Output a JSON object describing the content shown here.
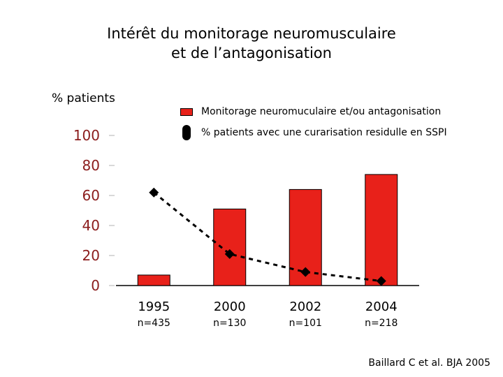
{
  "chart_data": {
    "type": "bar",
    "title": [
      "Intérêt du monitorage neuromusculaire",
      "et de l’antagonisation"
    ],
    "ylabel": "% patients",
    "ylim": [
      0,
      100
    ],
    "yticks": [
      "0",
      "20",
      "40",
      "60",
      "80",
      "100"
    ],
    "categories": [
      "1995",
      "2000",
      "2002",
      "2004"
    ],
    "sample_sizes": [
      "n=435",
      "n=130",
      "n=101",
      "n=218"
    ],
    "series": [
      {
        "name": "Monitorage neuromuculaire et/ou antagonisation",
        "kind": "bar",
        "color": "#e8211a",
        "values": [
          7,
          51,
          64,
          74
        ]
      },
      {
        "name": "% patients avec une curarisation residulle en SSPI",
        "kind": "dashed-line-diamond",
        "color": "#000000",
        "values": [
          62,
          21,
          9,
          3
        ]
      }
    ],
    "legend_position": "top-right",
    "source": "Baillard C et al. BJA 2005"
  }
}
